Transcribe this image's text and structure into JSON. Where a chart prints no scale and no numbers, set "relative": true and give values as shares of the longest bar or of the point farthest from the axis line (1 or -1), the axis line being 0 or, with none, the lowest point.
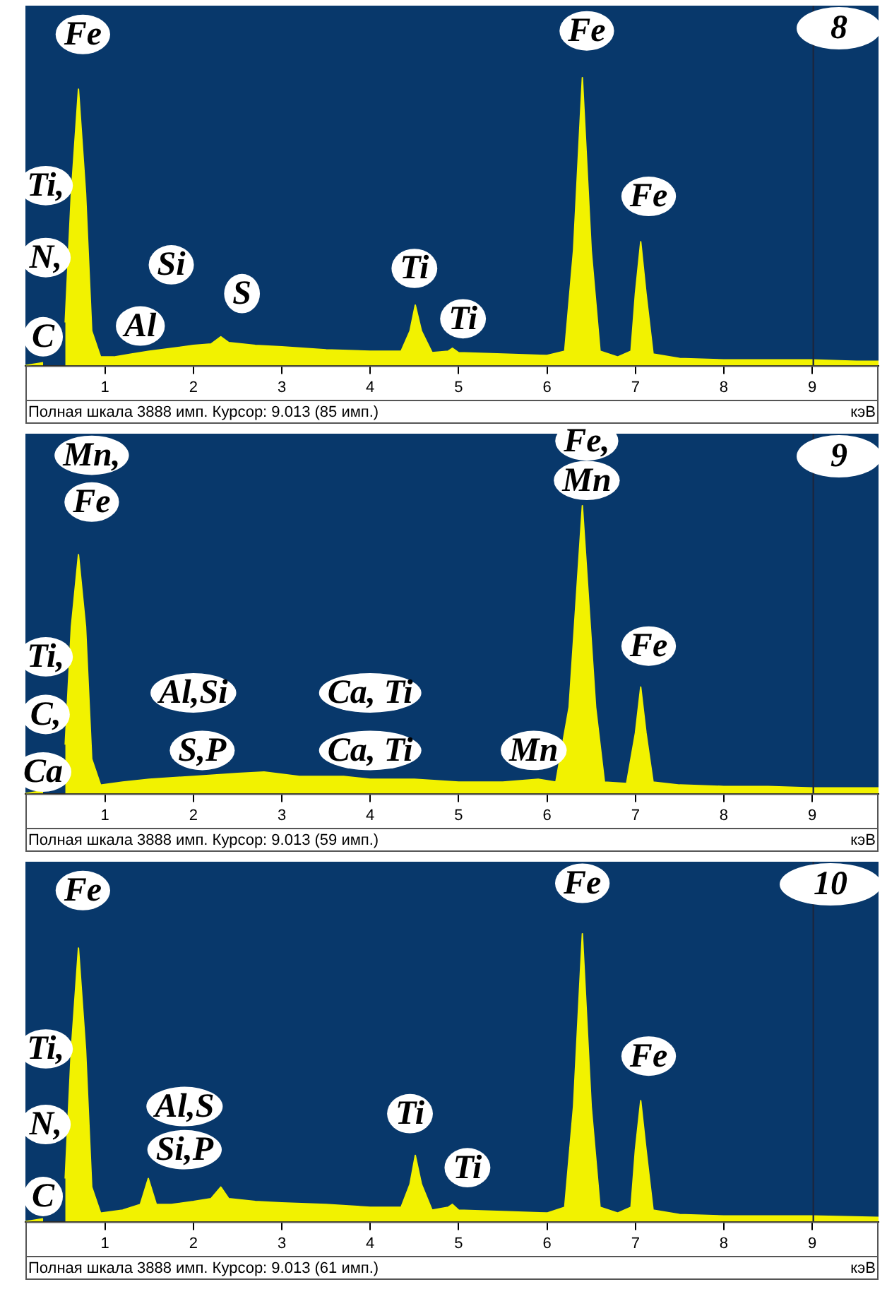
{
  "chart_data": [
    {
      "type": "area",
      "title": "8",
      "xlabel": "кэВ",
      "relative": true,
      "tick_labels": "x",
      "grid": false,
      "color": "#f2f200",
      "xlim": [
        0.1,
        9.75
      ],
      "xticks": [
        1,
        2,
        3,
        4,
        5,
        6,
        7,
        8,
        9
      ],
      "x": [
        0.1,
        0.3,
        0.45,
        0.55,
        0.62,
        0.7,
        0.78,
        0.85,
        0.95,
        1.1,
        1.3,
        1.5,
        1.75,
        2.0,
        2.2,
        2.31,
        2.4,
        2.7,
        3.0,
        3.5,
        4.0,
        4.35,
        4.45,
        4.51,
        4.58,
        4.7,
        4.88,
        4.93,
        5.0,
        5.5,
        6.0,
        6.2,
        6.3,
        6.4,
        6.5,
        6.6,
        6.8,
        6.95,
        7.0,
        7.06,
        7.12,
        7.2,
        7.5,
        8.0,
        8.5,
        9.0,
        9.5,
        9.75
      ],
      "values": [
        0,
        0.01,
        null,
        0.15,
        0.6,
        0.96,
        0.6,
        0.12,
        0.03,
        0.03,
        0.04,
        0.05,
        0.06,
        0.07,
        0.075,
        0.1,
        0.08,
        0.07,
        0.065,
        0.055,
        0.05,
        0.05,
        0.12,
        0.21,
        0.12,
        0.045,
        0.05,
        0.06,
        0.045,
        0.04,
        0.035,
        0.05,
        0.4,
        1,
        0.4,
        0.05,
        0.03,
        0.05,
        0.25,
        0.43,
        0.25,
        0.04,
        0.025,
        0.02,
        0.02,
        0.02,
        0.015,
        0.015
      ],
      "ref_lines": [
        {
          "axis": "x",
          "value": 9.013,
          "color": "#1b2740"
        }
      ],
      "annotations": [
        "Fe",
        "Fe",
        "Fe",
        "Ti",
        "Ti",
        "Si",
        "S",
        "Al",
        "Ti,",
        "N,",
        "C",
        "Полная шкала 3888 имп. Курсор: 9.013  (85 имп.)"
      ]
    },
    {
      "type": "area",
      "title": "9",
      "xlabel": "кэВ",
      "relative": true,
      "tick_labels": "x",
      "grid": false,
      "color": "#f2f200",
      "xlim": [
        0.1,
        9.75
      ],
      "xticks": [
        1,
        2,
        3,
        4,
        5,
        6,
        7,
        8,
        9
      ],
      "x": [
        0.1,
        0.3,
        0.45,
        0.55,
        0.62,
        0.7,
        0.78,
        0.85,
        0.95,
        1.2,
        1.5,
        2.0,
        2.5,
        2.8,
        3.2,
        3.7,
        4.0,
        4.5,
        5.0,
        5.5,
        5.9,
        6.1,
        6.25,
        6.4,
        6.55,
        6.65,
        6.9,
        7.0,
        7.06,
        7.12,
        7.2,
        7.5,
        8.0,
        8.5,
        9.0,
        9.75
      ],
      "values": [
        0,
        0.01,
        null,
        0.17,
        0.58,
        0.83,
        0.58,
        0.12,
        0.03,
        0.04,
        0.05,
        0.06,
        0.07,
        0.075,
        0.06,
        0.06,
        0.05,
        0.05,
        0.04,
        0.04,
        0.05,
        0.04,
        0.3,
        1,
        0.3,
        0.04,
        0.035,
        0.21,
        0.37,
        0.21,
        0.04,
        0.03,
        0.025,
        0.025,
        0.02,
        0.02
      ],
      "ref_lines": [
        {
          "axis": "x",
          "value": 9.013,
          "color": "#1b2740"
        }
      ],
      "annotations": [
        "Mn,",
        "Fe",
        "Fe,",
        "Mn",
        "Fe",
        "Ti,",
        "C,",
        "Ca",
        "Al,Si",
        "S,P",
        "Ca, Ti",
        "Ca, Ti",
        "Mn",
        "Полная шкала 3888 имп. Курсор: 9.013  (59 имп.)"
      ]
    },
    {
      "type": "area",
      "title": "10",
      "xlabel": "кэВ",
      "relative": true,
      "tick_labels": "x",
      "grid": false,
      "color": "#f2f200",
      "xlim": [
        0.1,
        9.75
      ],
      "xticks": [
        1,
        2,
        3,
        4,
        5,
        6,
        7,
        8,
        9
      ],
      "x": [
        0.1,
        0.3,
        0.45,
        0.55,
        0.62,
        0.7,
        0.78,
        0.85,
        0.95,
        1.2,
        1.4,
        1.49,
        1.58,
        1.75,
        2.0,
        2.2,
        2.31,
        2.4,
        2.7,
        3.0,
        3.5,
        4.0,
        4.35,
        4.45,
        4.51,
        4.58,
        4.7,
        4.88,
        4.93,
        5.0,
        5.5,
        6.0,
        6.2,
        6.3,
        6.4,
        6.5,
        6.6,
        6.8,
        6.95,
        7.0,
        7.06,
        7.12,
        7.2,
        7.5,
        8.0,
        8.5,
        9.0,
        9.75
      ],
      "values": [
        0,
        0.01,
        null,
        0.15,
        0.6,
        0.95,
        0.6,
        0.12,
        0.03,
        0.04,
        0.06,
        0.15,
        0.06,
        0.06,
        0.07,
        0.08,
        0.12,
        0.08,
        0.07,
        0.065,
        0.06,
        0.05,
        0.05,
        0.13,
        0.23,
        0.13,
        0.04,
        0.05,
        0.06,
        0.04,
        0.035,
        0.03,
        0.05,
        0.4,
        1,
        0.4,
        0.05,
        0.03,
        0.05,
        0.25,
        0.42,
        0.25,
        0.04,
        0.025,
        0.02,
        0.02,
        0.02,
        0.015
      ],
      "ref_lines": [
        {
          "axis": "x",
          "value": 9.013,
          "color": "#1b2740"
        }
      ],
      "annotations": [
        "Fe",
        "Fe",
        "Fe",
        "Ti",
        "Ti",
        "Al,S",
        "Si,P",
        "Ti,",
        "N,",
        "C",
        "Полная шкала 3888 имп. Курсор: 9.013  (61 имп.)"
      ]
    }
  ]
}
